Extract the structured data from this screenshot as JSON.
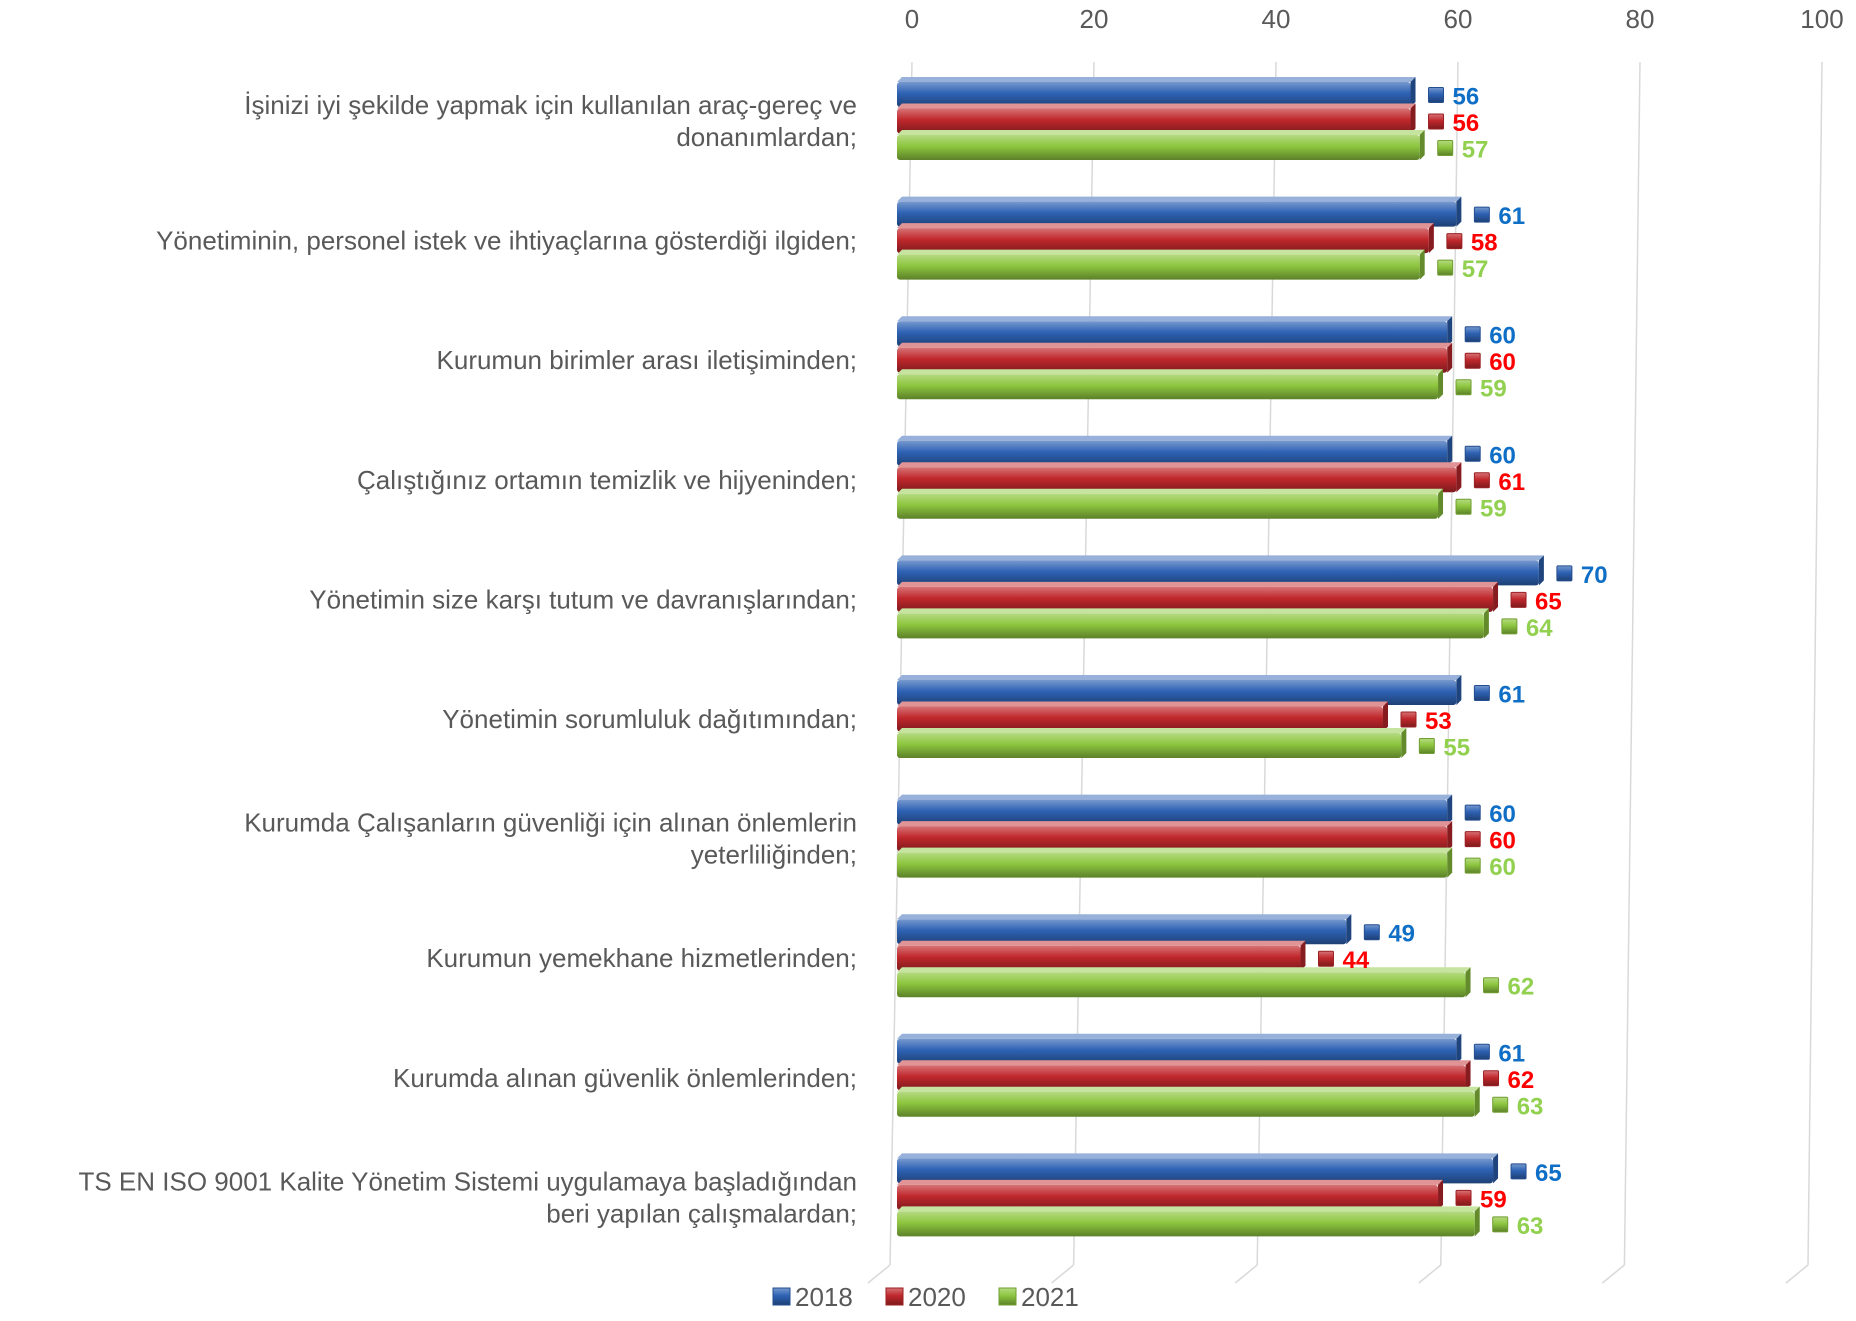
{
  "chart_data": {
    "type": "bar",
    "orientation": "horizontal",
    "categories": [
      [
        "İşinizi iyi şekilde yapmak için kullanılan araç-gereç ve",
        "donanımlardan;"
      ],
      [
        "Yönetiminin, personel istek ve ihtiyaçlarına gösterdiği ilgiden;"
      ],
      [
        "Kurumun birimler arası iletişiminden;"
      ],
      [
        "Çalıştığınız ortamın temizlik ve hijyeninden;"
      ],
      [
        "Yönetimin size karşı tutum ve davranışlarından;"
      ],
      [
        "Yönetimin sorumluluk dağıtımından;"
      ],
      [
        "Kurumda Çalışanların güvenliği için alınan önlemlerin",
        "yeterliliğinden;"
      ],
      [
        "Kurumun yemekhane hizmetlerinden;"
      ],
      [
        "Kurumda alınan güvenlik önlemlerinden;"
      ],
      [
        "TS EN ISO 9001 Kalite Yönetim Sistemi uygulamaya başladığından",
        "beri yapılan çalışmalardan;"
      ]
    ],
    "series": [
      {
        "name": "2018",
        "color": "#2E62B4",
        "label_color": "#0F6FC6",
        "values": [
          56,
          61,
          60,
          60,
          70,
          61,
          60,
          49,
          61,
          65
        ]
      },
      {
        "name": "2020",
        "color": "#C0282C",
        "label_color": "#FF0000",
        "values": [
          56,
          58,
          60,
          61,
          65,
          53,
          60,
          44,
          62,
          59
        ]
      },
      {
        "name": "2021",
        "color": "#8DC63F",
        "label_color": "#92D050",
        "values": [
          57,
          57,
          59,
          59,
          64,
          55,
          60,
          62,
          63,
          63
        ]
      }
    ],
    "xlim": [
      0,
      100
    ],
    "xticks": [
      0,
      20,
      40,
      60,
      80,
      100
    ],
    "axis_position": "top",
    "grid": true,
    "legend": "bottom",
    "data_labels": true,
    "style": "3d-perspective"
  }
}
